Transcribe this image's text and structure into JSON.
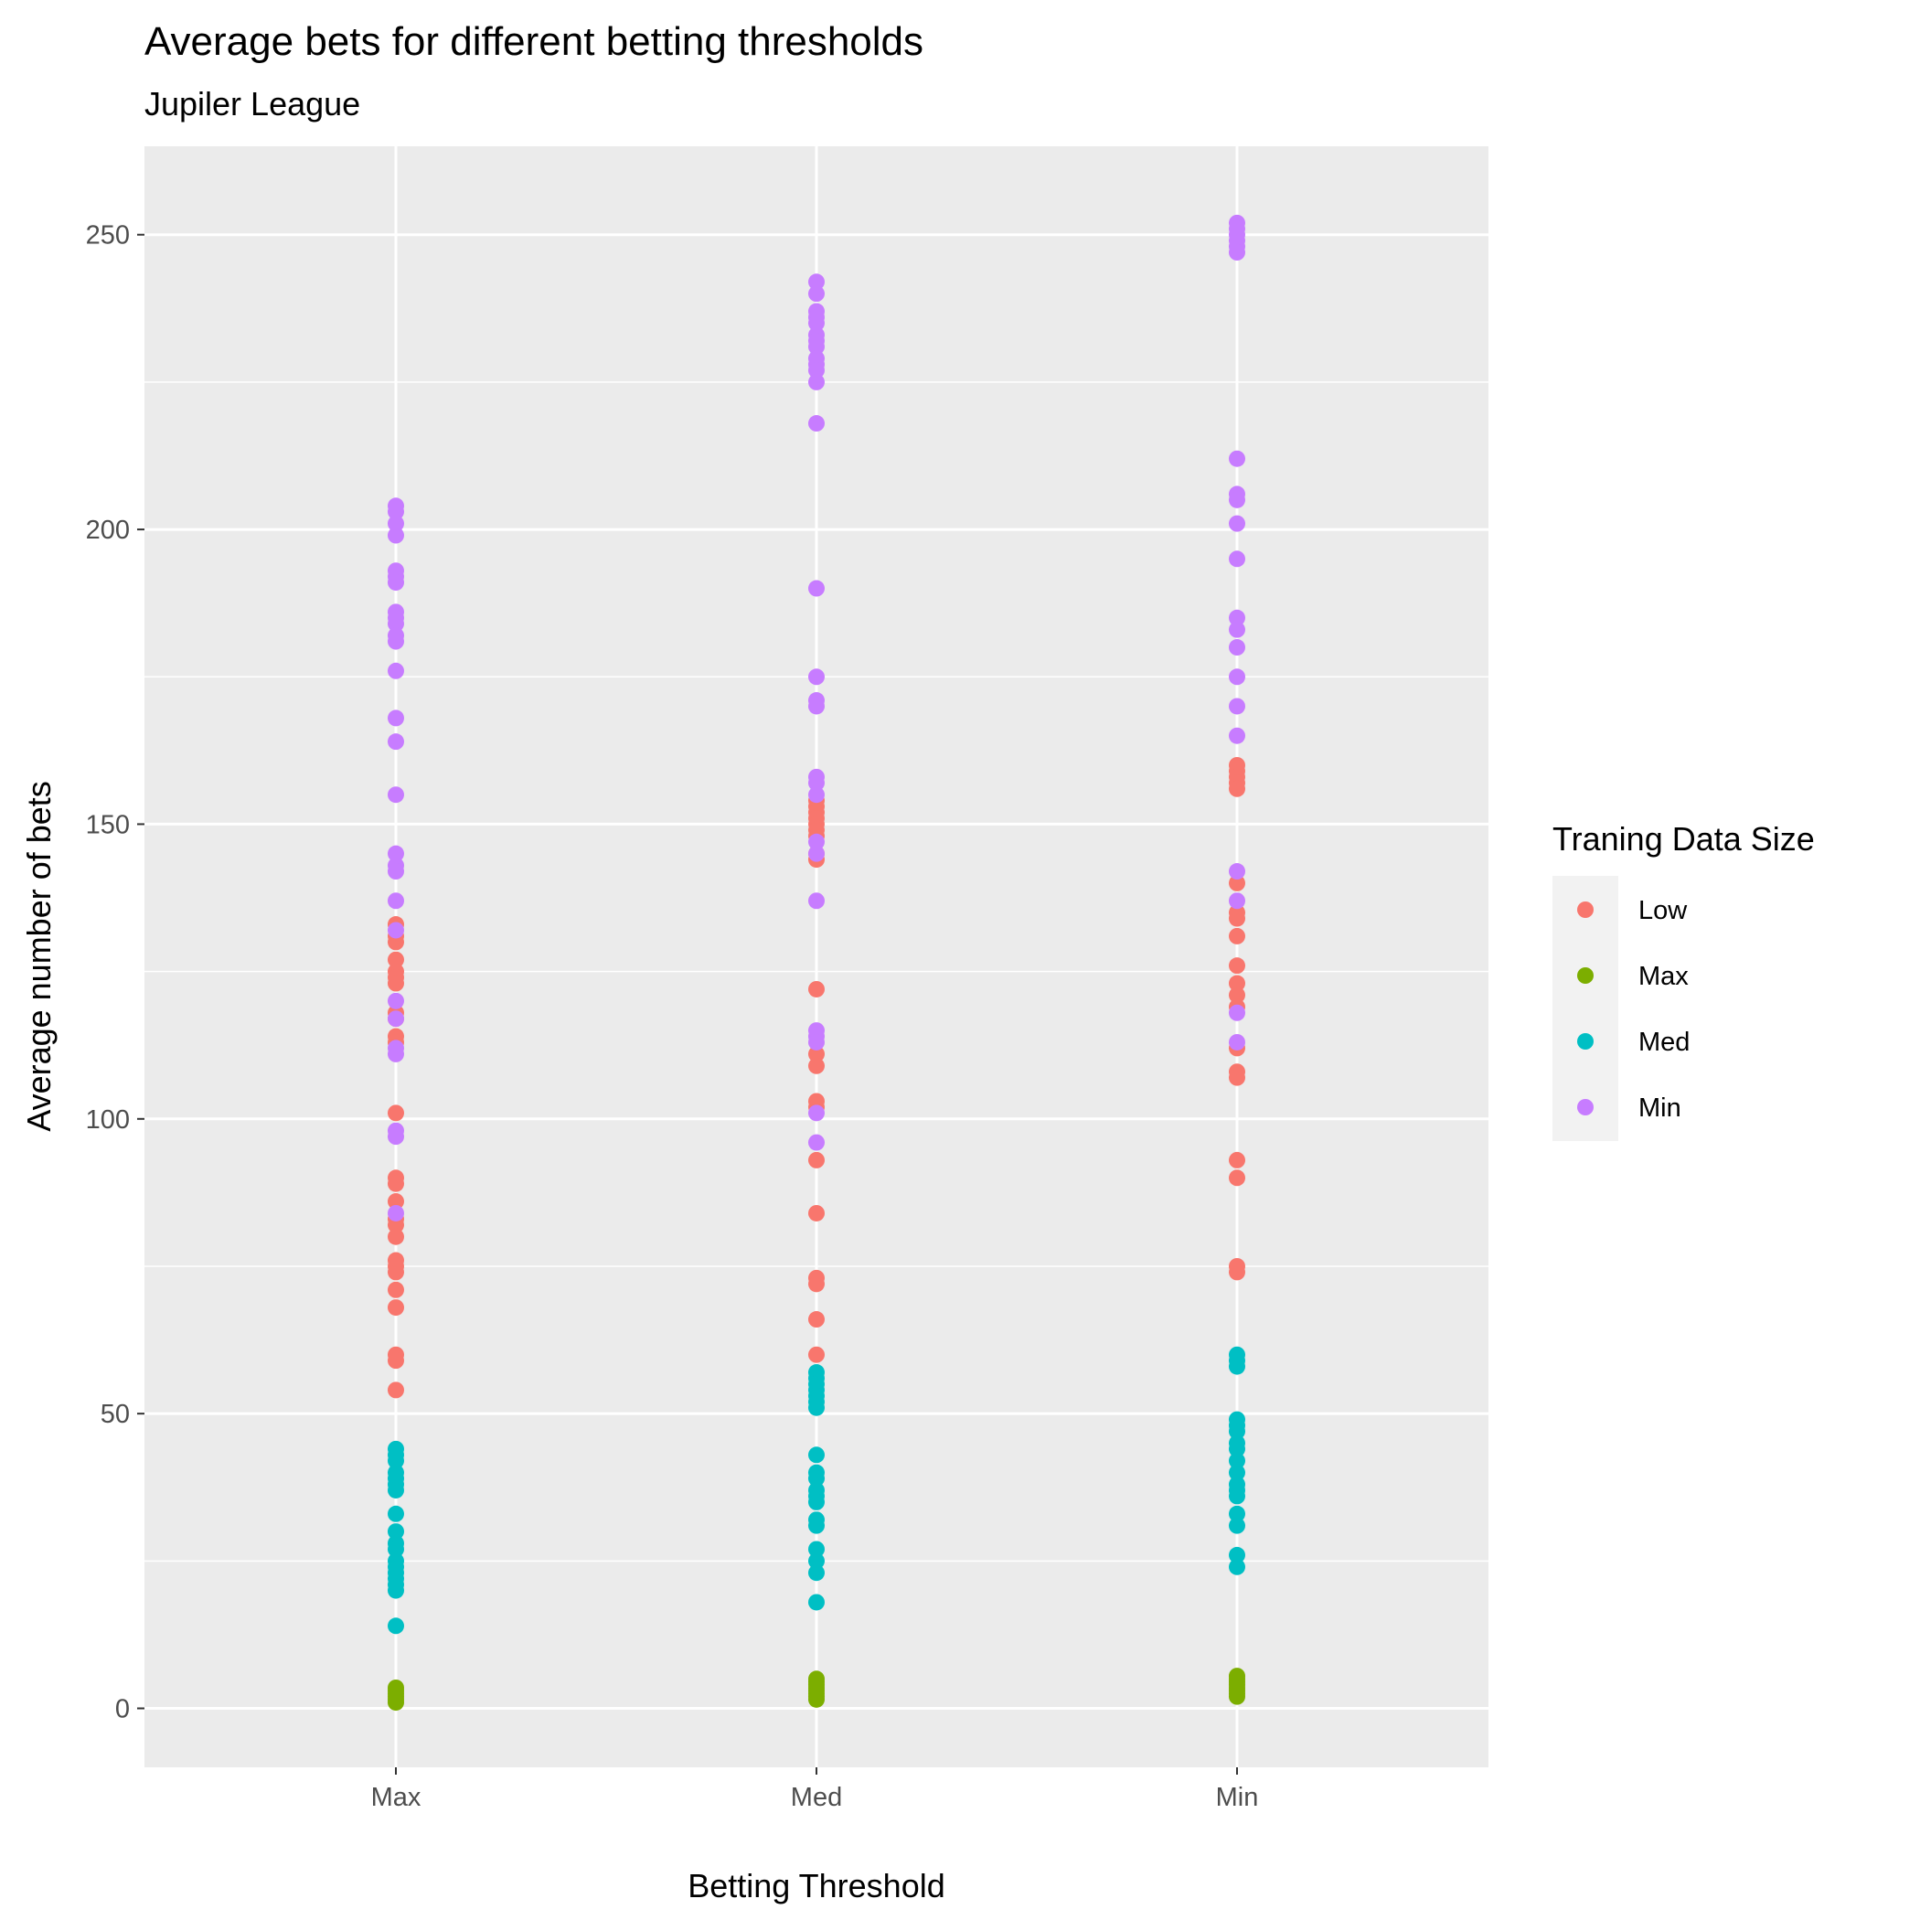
{
  "chart_data": {
    "type": "scatter",
    "title": "Average bets for different betting thresholds",
    "subtitle": "Jupiler League",
    "xlabel": "Betting Threshold",
    "ylabel": "Average number of bets",
    "categories": [
      "Max",
      "Med",
      "Min"
    ],
    "ylim": [
      -10,
      265
    ],
    "yticks": [
      0,
      50,
      100,
      150,
      200,
      250
    ],
    "grid": true,
    "legend": {
      "title": "Traning Data Size",
      "position": "right"
    },
    "series": [
      {
        "name": "Low",
        "color": "#F8766D",
        "points": [
          {
            "x": "Max",
            "values": [
              133,
              131,
              130,
              127,
              125,
              124,
              123,
              118,
              117,
              114,
              113,
              101,
              90,
              89,
              86,
              83,
              82,
              80,
              76,
              75,
              74,
              71,
              68,
              60,
              59,
              54
            ]
          },
          {
            "x": "Med",
            "values": [
              154,
              153,
              152,
              151,
              150,
              149,
              148,
              145,
              144,
              122,
              111,
              109,
              103,
              102,
              93,
              84,
              73,
              72,
              66,
              60
            ]
          },
          {
            "x": "Min",
            "values": [
              160,
              159,
              158,
              157,
              156,
              140,
              135,
              134,
              131,
              126,
              123,
              121,
              119,
              112,
              108,
              107,
              93,
              90,
              75,
              74
            ]
          }
        ]
      },
      {
        "name": "Max",
        "color": "#7CAE00",
        "points": [
          {
            "x": "Max",
            "values": [
              3.5,
              3,
              2.5,
              2,
              1.5,
              1
            ]
          },
          {
            "x": "Med",
            "values": [
              5,
              4.5,
              4,
              3.5,
              3,
              2.5,
              2,
              1.5
            ]
          },
          {
            "x": "Min",
            "values": [
              5.5,
              5,
              4.5,
              4,
              3.5,
              3,
              2.5,
              2
            ]
          }
        ]
      },
      {
        "name": "Med",
        "color": "#00BFC4",
        "points": [
          {
            "x": "Max",
            "values": [
              44,
              43,
              42,
              40,
              39,
              38,
              37,
              33,
              30,
              28,
              27,
              25,
              24,
              23,
              22,
              21,
              20,
              14
            ]
          },
          {
            "x": "Med",
            "values": [
              57,
              56,
              55,
              54,
              53,
              52,
              51,
              43,
              40,
              39,
              37,
              36,
              35,
              32,
              31,
              27,
              25,
              23,
              18
            ]
          },
          {
            "x": "Min",
            "values": [
              60,
              59,
              58,
              49,
              48,
              47,
              45,
              44,
              42,
              40,
              38,
              37,
              36,
              33,
              31,
              26,
              24
            ]
          }
        ]
      },
      {
        "name": "Min",
        "color": "#C77CFF",
        "points": [
          {
            "x": "Max",
            "values": [
              204,
              203,
              201,
              199,
              193,
              192,
              191,
              186,
              185,
              184,
              182,
              181,
              176,
              168,
              164,
              155,
              145,
              143,
              142,
              137,
              132,
              120,
              117,
              112,
              111,
              98,
              97,
              84
            ]
          },
          {
            "x": "Med",
            "values": [
              242,
              240,
              237,
              236,
              235,
              233,
              232,
              231,
              229,
              228,
              227,
              225,
              218,
              190,
              175,
              171,
              170,
              158,
              157,
              155,
              147,
              145,
              137,
              115,
              114,
              113,
              101,
              96
            ]
          },
          {
            "x": "Min",
            "values": [
              252,
              251,
              250,
              249,
              248,
              247,
              212,
              206,
              205,
              201,
              195,
              185,
              183,
              180,
              175,
              170,
              165,
              142,
              137,
              118,
              113
            ]
          }
        ]
      }
    ]
  }
}
